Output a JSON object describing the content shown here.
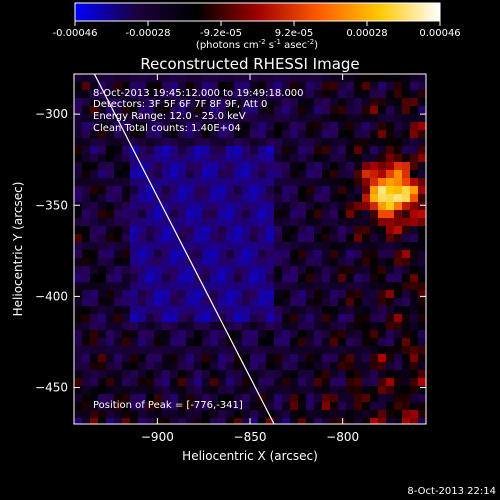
{
  "colorbar": {
    "tick_labels": [
      "-0.00046",
      "-0.00028",
      "-9.2e-05",
      "9.2e-05",
      "0.00028",
      "0.00046"
    ],
    "units_prefix": "(photons cm",
    "units_exp1": "-2",
    "units_mid1": " s",
    "units_exp2": "-1",
    "units_mid2": " asec",
    "units_exp3": "-2",
    "units_suffix": ")",
    "colors": [
      "#0000ff",
      "#1c0040",
      "#000000",
      "#a00000",
      "#ff5a00",
      "#ffc800",
      "#ffffff"
    ]
  },
  "plot": {
    "title": "Reconstructed RHESSI Image",
    "info": {
      "time_range": "8-Oct-2013 19:45:12.000 to 19:49:18.000",
      "detectors": "Detectors: 3F 5F 6F 7F 8F 9F, Att 0",
      "energy_range": "Energy Range: 12.0 - 25.0 keV",
      "clean_counts": "Clean    Total counts: 1.40E+04"
    },
    "peak_label": "Position of Peak = [-776,-341]"
  },
  "chart_data": {
    "type": "heatmap",
    "title": "Reconstructed RHESSI Image",
    "xlabel": "Heliocentric X (arcsec)",
    "ylabel": "Heliocentric Y (arcsec)",
    "xlim": [
      -945,
      -755
    ],
    "ylim": [
      -470,
      -278
    ],
    "x_ticks": [
      -900,
      -850,
      -800
    ],
    "x_tick_labels": [
      "−900",
      "−850",
      "−800"
    ],
    "y_ticks": [
      -300,
      -350,
      -400,
      -450
    ],
    "y_tick_labels": [
      "−300",
      "−350",
      "−400",
      "−450"
    ],
    "peak_position": [
      -776,
      -341
    ],
    "limb_line": {
      "x": [
        -934,
        -837
      ],
      "y": [
        -278,
        -470
      ]
    },
    "value_range": [
      -0.00046,
      0.00046
    ]
  },
  "footer": {
    "timestamp": "8-Oct-2013 22:14"
  }
}
